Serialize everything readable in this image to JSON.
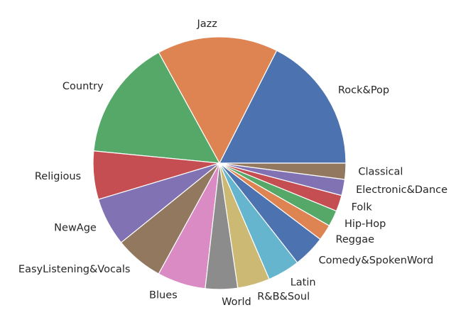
{
  "chart_data": {
    "type": "pie",
    "start_angle": 0,
    "direction": "counterclockwise",
    "legend": "none",
    "slices": [
      {
        "label": "Rock&Pop",
        "value": 17.0,
        "color": "#4c72b0"
      },
      {
        "label": "Jazz",
        "value": 15.0,
        "color": "#dd8452"
      },
      {
        "label": "Country",
        "value": 15.0,
        "color": "#55a868"
      },
      {
        "label": "Religious",
        "value": 6.0,
        "color": "#c44e52"
      },
      {
        "label": "NewAge",
        "value": 6.0,
        "color": "#8172b3"
      },
      {
        "label": "EasyListening&Vocals",
        "value": 6.0,
        "color": "#937860"
      },
      {
        "label": "Blues",
        "value": 6.0,
        "color": "#da8bc3"
      },
      {
        "label": "World",
        "value": 4.0,
        "color": "#8c8c8c"
      },
      {
        "label": "R&B&Soul",
        "value": 4.0,
        "color": "#ccb974"
      },
      {
        "label": "Latin",
        "value": 4.0,
        "color": "#64b5cd"
      },
      {
        "label": "Comedy&SpokenWord",
        "value": 4.0,
        "color": "#4c72b0"
      },
      {
        "label": "Reggae",
        "value": 2.0,
        "color": "#dd8452"
      },
      {
        "label": "Hip-Hop",
        "value": 2.0,
        "color": "#55a868"
      },
      {
        "label": "Folk",
        "value": 2.0,
        "color": "#c44e52"
      },
      {
        "label": "Electronic&Dance",
        "value": 2.0,
        "color": "#8172b3"
      },
      {
        "label": "Classical",
        "value": 2.0,
        "color": "#937860"
      }
    ]
  }
}
